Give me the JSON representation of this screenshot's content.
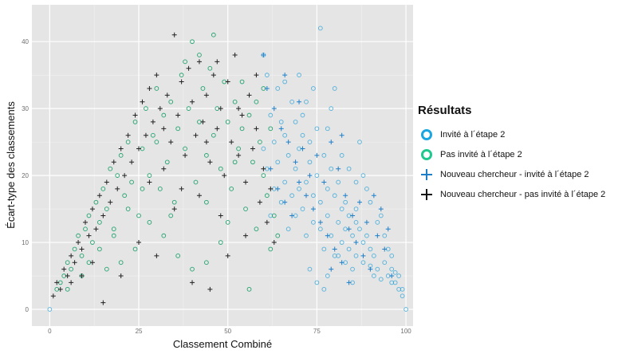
{
  "chart_data": {
    "type": "scatter",
    "title": "",
    "xlabel": "Classement Combiné",
    "ylabel": "Écart-type des classements",
    "xlim": [
      -5,
      102
    ],
    "ylim": [
      -2.5,
      45.5
    ],
    "xticks": [
      0,
      25,
      50,
      75,
      100
    ],
    "yticks": [
      0,
      10,
      20,
      30,
      40
    ],
    "grid": true,
    "background": "#e5e5e5",
    "legend": {
      "title": "Résultats",
      "placement": "right"
    },
    "series": [
      {
        "name": "Invité à l´étape 2",
        "marker": "circle",
        "color": "#1e9fd8",
        "points": [
          [
            0,
            0
          ],
          [
            100,
            0
          ],
          [
            99,
            2
          ],
          [
            98,
            3
          ],
          [
            97,
            4
          ],
          [
            97,
            5.5
          ],
          [
            96,
            4
          ],
          [
            96,
            6
          ],
          [
            95,
            5
          ],
          [
            94,
            7
          ],
          [
            93,
            4.5
          ],
          [
            92,
            6
          ],
          [
            91,
            8
          ],
          [
            91,
            5
          ],
          [
            90,
            9
          ],
          [
            90,
            6.5
          ],
          [
            89,
            11
          ],
          [
            88,
            7
          ],
          [
            88,
            10
          ],
          [
            87,
            12
          ],
          [
            86,
            8
          ],
          [
            86,
            13
          ],
          [
            85,
            6
          ],
          [
            85,
            11
          ],
          [
            84,
            14
          ],
          [
            84,
            9
          ],
          [
            83,
            12
          ],
          [
            83,
            16
          ],
          [
            82,
            10
          ],
          [
            82,
            15
          ],
          [
            81,
            13
          ],
          [
            81,
            19
          ],
          [
            80,
            8
          ],
          [
            80,
            17
          ],
          [
            79,
            11
          ],
          [
            79,
            21
          ],
          [
            78,
            14
          ],
          [
            78,
            18
          ],
          [
            77,
            9
          ],
          [
            77,
            23
          ],
          [
            76,
            16
          ],
          [
            76,
            12
          ],
          [
            75,
            20
          ],
          [
            75,
            27
          ],
          [
            74,
            13
          ],
          [
            74,
            17
          ],
          [
            73,
            22
          ],
          [
            73,
            25
          ],
          [
            72,
            11
          ],
          [
            72,
            19
          ],
          [
            71,
            15
          ],
          [
            71,
            29
          ],
          [
            70,
            18
          ],
          [
            70,
            24
          ],
          [
            69,
            14
          ],
          [
            69,
            21
          ],
          [
            68,
            31
          ],
          [
            68,
            17
          ],
          [
            67,
            23
          ],
          [
            67,
            12
          ],
          [
            66,
            26
          ],
          [
            66,
            19
          ],
          [
            65,
            16
          ],
          [
            65,
            28
          ],
          [
            64,
            22
          ],
          [
            64,
            33
          ],
          [
            63,
            18
          ],
          [
            63,
            25
          ],
          [
            62,
            14
          ],
          [
            62,
            29
          ],
          [
            61,
            21
          ],
          [
            61,
            35
          ],
          [
            60,
            24
          ],
          [
            60,
            38
          ],
          [
            76,
            42
          ],
          [
            80,
            33
          ],
          [
            79,
            30
          ],
          [
            84,
            21
          ],
          [
            87,
            25
          ],
          [
            89,
            18
          ],
          [
            92,
            13
          ],
          [
            85,
            4
          ],
          [
            83,
            7
          ],
          [
            86,
            15
          ],
          [
            88,
            20
          ],
          [
            94,
            11
          ],
          [
            95,
            9
          ],
          [
            73,
            6
          ],
          [
            75,
            4
          ],
          [
            78,
            5
          ],
          [
            81,
            8
          ],
          [
            77,
            3
          ],
          [
            74,
            33
          ],
          [
            72,
            31
          ],
          [
            70,
            35
          ],
          [
            66,
            34
          ],
          [
            69,
            28
          ],
          [
            71,
            26
          ],
          [
            78,
            27
          ],
          [
            82,
            23
          ],
          [
            86,
            19
          ],
          [
            90,
            16
          ],
          [
            93,
            14
          ],
          [
            96,
            8
          ],
          [
            98,
            5
          ],
          [
            99,
            3
          ]
        ]
      },
      {
        "name": "Pas invité à l´étape 2",
        "marker": "circle",
        "color": "#0a9b60",
        "points": [
          [
            2,
            3
          ],
          [
            3,
            4
          ],
          [
            4,
            5
          ],
          [
            5,
            7
          ],
          [
            6,
            6
          ],
          [
            7,
            9
          ],
          [
            8,
            11
          ],
          [
            9,
            8
          ],
          [
            10,
            12
          ],
          [
            11,
            14
          ],
          [
            12,
            10
          ],
          [
            13,
            16
          ],
          [
            14,
            13
          ],
          [
            15,
            18
          ],
          [
            16,
            15
          ],
          [
            17,
            21
          ],
          [
            18,
            12
          ],
          [
            19,
            20
          ],
          [
            20,
            23
          ],
          [
            21,
            17
          ],
          [
            22,
            25
          ],
          [
            23,
            19
          ],
          [
            24,
            28
          ],
          [
            25,
            14
          ],
          [
            26,
            24
          ],
          [
            27,
            30
          ],
          [
            28,
            20
          ],
          [
            29,
            26
          ],
          [
            30,
            33
          ],
          [
            31,
            18
          ],
          [
            32,
            29
          ],
          [
            33,
            22
          ],
          [
            34,
            31
          ],
          [
            35,
            16
          ],
          [
            36,
            27
          ],
          [
            37,
            35
          ],
          [
            38,
            24
          ],
          [
            39,
            30
          ],
          [
            40,
            40
          ],
          [
            41,
            19
          ],
          [
            42,
            28
          ],
          [
            43,
            33
          ],
          [
            44,
            23
          ],
          [
            45,
            36
          ],
          [
            46,
            26
          ],
          [
            47,
            30
          ],
          [
            48,
            21
          ],
          [
            49,
            34
          ],
          [
            50,
            28
          ],
          [
            51,
            18
          ],
          [
            52,
            31
          ],
          [
            53,
            24
          ],
          [
            54,
            27
          ],
          [
            55,
            15
          ],
          [
            56,
            29
          ],
          [
            57,
            22
          ],
          [
            58,
            12
          ],
          [
            59,
            25
          ],
          [
            60,
            20
          ],
          [
            61,
            17
          ],
          [
            62,
            9
          ],
          [
            63,
            14
          ],
          [
            64,
            11
          ],
          [
            56,
            3
          ],
          [
            48,
            10
          ],
          [
            44,
            7
          ],
          [
            40,
            6
          ],
          [
            36,
            8
          ],
          [
            32,
            11
          ],
          [
            28,
            13
          ],
          [
            24,
            9
          ],
          [
            20,
            7
          ],
          [
            16,
            6
          ],
          [
            46,
            41
          ],
          [
            42,
            38
          ],
          [
            54,
            34
          ],
          [
            58,
            31
          ],
          [
            38,
            37
          ],
          [
            52,
            22
          ],
          [
            30,
            25
          ],
          [
            26,
            18
          ],
          [
            22,
            15
          ],
          [
            18,
            11
          ],
          [
            14,
            9
          ],
          [
            34,
            14
          ],
          [
            44,
            16
          ],
          [
            50,
            13
          ],
          [
            62,
            27
          ],
          [
            60,
            33
          ],
          [
            9,
            5
          ],
          [
            11,
            7
          ],
          [
            5,
            3
          ]
        ]
      },
      {
        "name": "Nouveau chercheur - invité à l´étape 2",
        "marker": "plus",
        "color": "#1e7fc8",
        "points": [
          [
            60,
            38
          ],
          [
            61,
            33
          ],
          [
            63,
            30
          ],
          [
            65,
            27
          ],
          [
            67,
            25
          ],
          [
            69,
            22
          ],
          [
            70,
            19
          ],
          [
            72,
            17
          ],
          [
            74,
            15
          ],
          [
            76,
            13
          ],
          [
            78,
            11
          ],
          [
            80,
            9
          ],
          [
            82,
            7
          ],
          [
            84,
            12
          ],
          [
            86,
            10
          ],
          [
            88,
            8
          ],
          [
            90,
            6
          ],
          [
            92,
            11
          ],
          [
            94,
            9
          ],
          [
            96,
            5
          ],
          [
            62,
            21
          ],
          [
            64,
            18
          ],
          [
            66,
            16
          ],
          [
            68,
            14
          ],
          [
            71,
            24
          ],
          [
            73,
            20
          ],
          [
            75,
            23
          ],
          [
            77,
            19
          ],
          [
            79,
            25
          ],
          [
            81,
            21
          ],
          [
            83,
            17
          ],
          [
            85,
            14
          ],
          [
            87,
            16
          ],
          [
            89,
            13
          ],
          [
            91,
            17
          ],
          [
            93,
            15
          ],
          [
            95,
            12
          ],
          [
            79,
            6
          ],
          [
            82,
            26
          ],
          [
            84,
            4
          ],
          [
            66,
            35
          ],
          [
            70,
            31
          ]
        ]
      },
      {
        "name": "Nouveau chercheur - pas invité à l´étape 2",
        "marker": "plus",
        "color": "#222222",
        "points": [
          [
            1,
            2
          ],
          [
            2,
            4
          ],
          [
            3,
            3
          ],
          [
            4,
            6
          ],
          [
            5,
            5
          ],
          [
            6,
            8
          ],
          [
            7,
            7
          ],
          [
            8,
            10
          ],
          [
            9,
            9
          ],
          [
            10,
            13
          ],
          [
            11,
            11
          ],
          [
            12,
            15
          ],
          [
            13,
            12
          ],
          [
            14,
            17
          ],
          [
            15,
            14
          ],
          [
            16,
            19
          ],
          [
            17,
            16
          ],
          [
            18,
            22
          ],
          [
            19,
            18
          ],
          [
            20,
            24
          ],
          [
            21,
            20
          ],
          [
            22,
            26
          ],
          [
            23,
            22
          ],
          [
            24,
            29
          ],
          [
            25,
            24
          ],
          [
            26,
            31
          ],
          [
            27,
            26
          ],
          [
            28,
            33
          ],
          [
            29,
            28
          ],
          [
            30,
            35
          ],
          [
            31,
            30
          ],
          [
            32,
            27
          ],
          [
            33,
            32
          ],
          [
            34,
            25
          ],
          [
            35,
            41
          ],
          [
            36,
            29
          ],
          [
            37,
            34
          ],
          [
            38,
            23
          ],
          [
            39,
            36
          ],
          [
            40,
            31
          ],
          [
            41,
            26
          ],
          [
            42,
            37
          ],
          [
            43,
            28
          ],
          [
            44,
            32
          ],
          [
            45,
            22
          ],
          [
            46,
            35
          ],
          [
            47,
            27
          ],
          [
            48,
            30
          ],
          [
            49,
            20
          ],
          [
            50,
            34
          ],
          [
            51,
            25
          ],
          [
            52,
            38
          ],
          [
            53,
            23
          ],
          [
            54,
            29
          ],
          [
            55,
            19
          ],
          [
            56,
            32
          ],
          [
            57,
            24
          ],
          [
            58,
            27
          ],
          [
            59,
            16
          ],
          [
            60,
            21
          ],
          [
            61,
            13
          ],
          [
            62,
            18
          ],
          [
            63,
            10
          ],
          [
            40,
            4
          ],
          [
            45,
            3
          ],
          [
            30,
            8
          ],
          [
            25,
            10
          ],
          [
            15,
            1
          ],
          [
            20,
            5
          ],
          [
            35,
            15
          ],
          [
            42,
            17
          ],
          [
            48,
            14
          ],
          [
            55,
            11
          ],
          [
            50,
            8
          ],
          [
            28,
            19
          ],
          [
            32,
            21
          ],
          [
            37,
            18
          ],
          [
            44,
            25
          ],
          [
            53,
            30
          ],
          [
            58,
            35
          ],
          [
            47,
            37
          ],
          [
            12,
            7
          ],
          [
            9,
            5
          ],
          [
            6,
            4
          ]
        ]
      }
    ]
  }
}
